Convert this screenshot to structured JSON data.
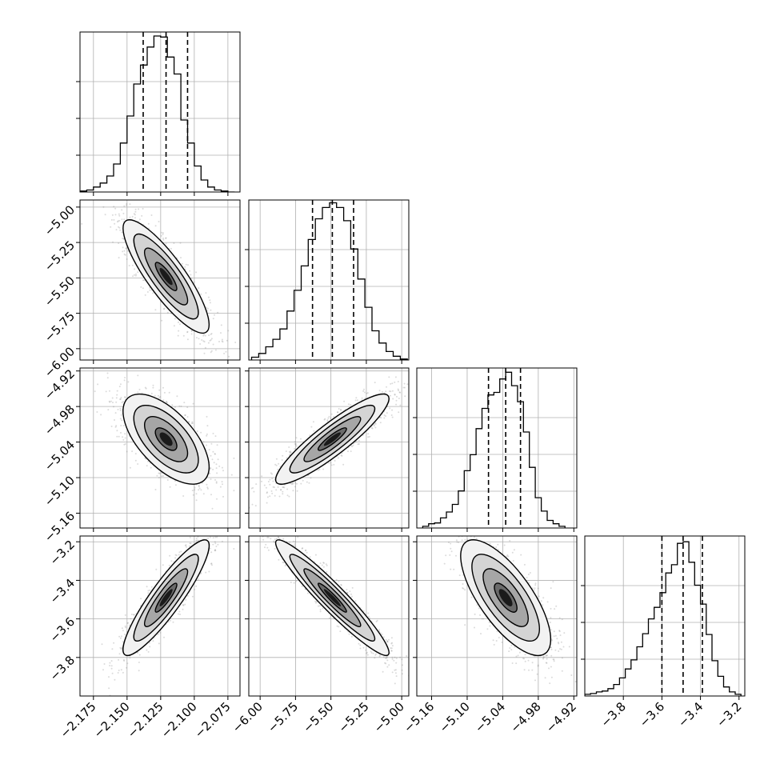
{
  "chart_data": {
    "type": "corner",
    "title": "",
    "parameter_labels": [
      "",
      "",
      "",
      ""
    ],
    "colors": {
      "ink": "#000000",
      "grid": "#b0b0b0",
      "points": "#7f7f7f",
      "background": "#ffffff"
    },
    "grid": true,
    "parameters": [
      {
        "range": [
          -2.185,
          -2.066
        ],
        "tick_values": [
          -2.175,
          -2.15,
          -2.125,
          -2.1,
          -2.075
        ],
        "tick_labels": [
          "−2.175",
          "−2.150",
          "−2.125",
          "−2.100",
          "−2.075"
        ],
        "quantiles": [
          -2.138,
          -2.121,
          -2.105
        ],
        "histogram": {
          "bin_edges": [
            -2.185,
            -2.18,
            -2.175,
            -2.17,
            -2.165,
            -2.16,
            -2.155,
            -2.15,
            -2.145,
            -2.14,
            -2.135,
            -2.13,
            -2.125,
            -2.12,
            -2.115,
            -2.11,
            -2.105,
            -2.1,
            -2.095,
            -2.09,
            -2.085,
            -2.08,
            -2.075,
            -2.07
          ],
          "counts": [
            1,
            2,
            5,
            9,
            16,
            28,
            49,
            76,
            108,
            127,
            145,
            156,
            155,
            135,
            118,
            72,
            49,
            26,
            12,
            5,
            2,
            1,
            0
          ],
          "y_max": 160
        }
      },
      {
        "range": [
          -6.08,
          -4.95
        ],
        "tick_values": [
          -6.0,
          -5.75,
          -5.5,
          -5.25,
          -5.0
        ],
        "tick_labels": [
          "−6.00",
          "−5.75",
          "−5.50",
          "−5.25",
          "−5.00"
        ],
        "quantiles": [
          -5.63,
          -5.49,
          -5.34
        ],
        "histogram": {
          "bin_edges": [
            -6.06,
            -6.01,
            -5.96,
            -5.91,
            -5.86,
            -5.81,
            -5.76,
            -5.71,
            -5.66,
            -5.61,
            -5.56,
            -5.51,
            -5.46,
            -5.41,
            -5.36,
            -5.31,
            -5.26,
            -5.21,
            -5.16,
            -5.11,
            -5.06,
            -5.01,
            -4.96
          ],
          "counts": [
            3,
            7,
            14,
            22,
            33,
            52,
            74,
            100,
            128,
            150,
            162,
            167,
            162,
            148,
            118,
            86,
            56,
            31,
            18,
            9,
            4,
            1
          ],
          "y_max": 170
        }
      },
      {
        "range": [
          -5.185,
          -4.915
        ],
        "tick_values": [
          -5.16,
          -5.1,
          -5.04,
          -4.98,
          -4.92
        ],
        "tick_labels": [
          "−5.16",
          "−5.10",
          "−5.04",
          "−4.98",
          "−4.92"
        ],
        "quantiles": [
          -5.064,
          -5.035,
          -5.01
        ],
        "histogram": {
          "bin_edges": [
            -5.175,
            -5.165,
            -5.155,
            -5.145,
            -5.135,
            -5.125,
            -5.115,
            -5.105,
            -5.095,
            -5.085,
            -5.075,
            -5.065,
            -5.055,
            -5.045,
            -5.035,
            -5.025,
            -5.015,
            -5.005,
            -4.995,
            -4.985,
            -4.975,
            -4.965,
            -4.955,
            -4.945,
            -4.935
          ],
          "counts": [
            2,
            5,
            6,
            12,
            19,
            28,
            44,
            68,
            87,
            118,
            142,
            158,
            161,
            177,
            185,
            169,
            150,
            114,
            72,
            36,
            20,
            9,
            5,
            2
          ],
          "y_max": 190
        }
      },
      {
        "range": [
          -4.0,
          -3.17
        ],
        "tick_values": [
          -3.8,
          -3.6,
          -3.4,
          -3.2
        ],
        "tick_labels": [
          "−3.8",
          "−3.6",
          "−3.4",
          "−3.2"
        ],
        "quantiles": [
          -3.6,
          -3.49,
          -3.39
        ],
        "histogram": {
          "bin_edges": [
            -4.0,
            -3.97,
            -3.94,
            -3.91,
            -3.88,
            -3.85,
            -3.82,
            -3.79,
            -3.76,
            -3.73,
            -3.7,
            -3.67,
            -3.64,
            -3.61,
            -3.58,
            -3.55,
            -3.52,
            -3.49,
            -3.46,
            -3.43,
            -3.4,
            -3.37,
            -3.34,
            -3.31,
            -3.28,
            -3.25,
            -3.22,
            -3.19
          ],
          "counts": [
            2,
            3,
            5,
            6,
            9,
            14,
            22,
            33,
            44,
            60,
            76,
            94,
            108,
            126,
            150,
            160,
            186,
            188,
            163,
            135,
            112,
            75,
            43,
            24,
            11,
            5,
            2
          ],
          "y_max": 195
        }
      }
    ],
    "pairs": [
      {
        "x_param": 0,
        "y_param": 1,
        "mean": [
          -2.121,
          -5.49
        ],
        "sd": [
          0.016,
          0.2
        ],
        "correlation": -0.85,
        "y_tick_values": [
          -5.0,
          -5.25,
          -5.5,
          -5.75,
          -6.0
        ],
        "y_tick_labels": [
          "−5.00",
          "−5.25",
          "−5.50",
          "−5.75",
          "−6.00"
        ]
      },
      {
        "x_param": 0,
        "y_param": 2,
        "mean": [
          -2.121,
          -5.035
        ],
        "sd": [
          0.016,
          0.038
        ],
        "correlation": -0.62,
        "y_tick_values": [
          -4.92,
          -4.98,
          -5.04,
          -5.1,
          -5.16
        ],
        "y_tick_labels": [
          "−4.92",
          "−4.98",
          "−5.04",
          "−5.10",
          "−5.16"
        ]
      },
      {
        "x_param": 1,
        "y_param": 2,
        "mean": [
          -5.49,
          -5.035
        ],
        "sd": [
          0.2,
          0.038
        ],
        "correlation": 0.9,
        "y_tick_values": [],
        "y_tick_labels": []
      },
      {
        "x_param": 0,
        "y_param": 3,
        "mean": [
          -2.121,
          -3.49
        ],
        "sd": [
          0.016,
          0.15
        ],
        "correlation": 0.9,
        "y_tick_values": [
          -3.2,
          -3.4,
          -3.6,
          -3.8
        ],
        "y_tick_labels": [
          "−3.2",
          "−3.4",
          "−3.6",
          "−3.8"
        ]
      },
      {
        "x_param": 1,
        "y_param": 3,
        "mean": [
          -5.49,
          -3.49
        ],
        "sd": [
          0.2,
          0.15
        ],
        "correlation": -0.95,
        "y_tick_values": [],
        "y_tick_labels": []
      },
      {
        "x_param": 2,
        "y_param": 3,
        "mean": [
          -5.035,
          -3.49
        ],
        "sd": [
          0.038,
          0.15
        ],
        "correlation": -0.72,
        "y_tick_values": [],
        "y_tick_labels": []
      }
    ],
    "contour_levels_sigma": [
      0.5,
      1.0,
      1.5,
      2.0
    ]
  }
}
